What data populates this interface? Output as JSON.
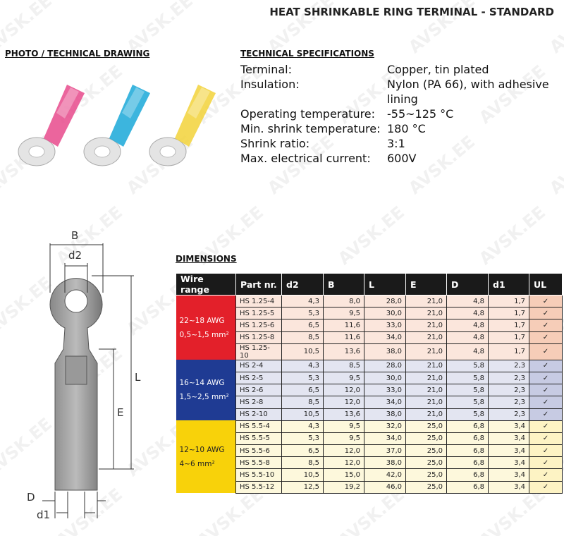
{
  "title": "HEAT SHRINKABLE RING TERMINAL - STANDARD",
  "watermark": "AVSK.EE",
  "photo_heading": "PHOTO / TECHNICAL DRAWING",
  "specs_heading": "TECHNICAL SPECIFICATIONS",
  "specs": [
    {
      "label": "Terminal:",
      "value": "Copper, tin plated"
    },
    {
      "label": "Insulation:",
      "value": "Nylon (PA 66), with adhesive lining"
    },
    {
      "label": "Operating temperature:",
      "value": "-55~125 °C"
    },
    {
      "label": "Min. shrink temperature:",
      "value": "180 °C"
    },
    {
      "label": "Shrink ratio:",
      "value": "3:1"
    },
    {
      "label": "Max. electrical current:",
      "value": "600V"
    }
  ],
  "photo_colors": [
    "#e84a8c",
    "#1aa8d8",
    "#f2d23a"
  ],
  "drawing_labels": {
    "B": "B",
    "d2": "d2",
    "L": "L",
    "E": "E",
    "D": "D",
    "d1": "d1"
  },
  "dimensions_heading": "DIMENSIONS",
  "columns": [
    "Wire range",
    "Part nr.",
    "d2",
    "B",
    "L",
    "E",
    "D",
    "d1",
    "UL"
  ],
  "groups": [
    {
      "awg": "22~18 AWG",
      "mm": "0,5~1,5 mm²",
      "color": "#e3202a",
      "row_bg": "#fbe6dc",
      "ul_bg": "#f6cdb8",
      "rows": [
        [
          "HS 1.25-4",
          "4,3",
          "8,0",
          "28,0",
          "21,0",
          "4,8",
          "1,7",
          "✓"
        ],
        [
          "HS 1.25-5",
          "5,3",
          "9,5",
          "30,0",
          "21,0",
          "4,8",
          "1,7",
          "✓"
        ],
        [
          "HS 1.25-6",
          "6,5",
          "11,6",
          "33,0",
          "21,0",
          "4,8",
          "1,7",
          "✓"
        ],
        [
          "HS 1.25-8",
          "8,5",
          "11,6",
          "34,0",
          "21,0",
          "4,8",
          "1,7",
          "✓"
        ],
        [
          "HS 1.25-10",
          "10,5",
          "13,6",
          "38,0",
          "21,0",
          "4,8",
          "1,7",
          "✓"
        ]
      ]
    },
    {
      "awg": "16~14 AWG",
      "mm": "1,5~2,5 mm²",
      "color": "#1f3b93",
      "row_bg": "#e3e5f1",
      "ul_bg": "#c7cbe3",
      "rows": [
        [
          "HS 2-4",
          "4,3",
          "8,5",
          "28,0",
          "21,0",
          "5,8",
          "2,3",
          "✓"
        ],
        [
          "HS 2-5",
          "5,3",
          "9,5",
          "30,0",
          "21,0",
          "5,8",
          "2,3",
          "✓"
        ],
        [
          "HS 2-6",
          "6,5",
          "12,0",
          "33,0",
          "21,0",
          "5,8",
          "2,3",
          "✓"
        ],
        [
          "HS 2-8",
          "8,5",
          "12,0",
          "34,0",
          "21,0",
          "5,8",
          "2,3",
          "✓"
        ],
        [
          "HS 2-10",
          "10,5",
          "13,6",
          "38,0",
          "21,0",
          "5,8",
          "2,3",
          "✓"
        ]
      ]
    },
    {
      "awg": "12~10 AWG",
      "mm": "4~6 mm²",
      "color": "#f8d20a",
      "row_bg": "#fdf8dc",
      "ul_bg": "#fdf3c4",
      "rows": [
        [
          "HS 5.5-4",
          "4,3",
          "9,5",
          "32,0",
          "25,0",
          "6,8",
          "3,4",
          "✓"
        ],
        [
          "HS 5.5-5",
          "5,3",
          "9,5",
          "34,0",
          "25,0",
          "6,8",
          "3,4",
          "✓"
        ],
        [
          "HS 5.5-6",
          "6,5",
          "12,0",
          "37,0",
          "25,0",
          "6,8",
          "3,4",
          "✓"
        ],
        [
          "HS 5.5-8",
          "8,5",
          "12,0",
          "38,0",
          "25,0",
          "6,8",
          "3,4",
          "✓"
        ],
        [
          "HS 5.5-10",
          "10,5",
          "15,0",
          "42,0",
          "25,0",
          "6,8",
          "3,4",
          "✓"
        ],
        [
          "HS 5.5-12",
          "12,5",
          "19,2",
          "46,0",
          "25,0",
          "6,8",
          "3,4",
          "✓"
        ]
      ]
    }
  ]
}
